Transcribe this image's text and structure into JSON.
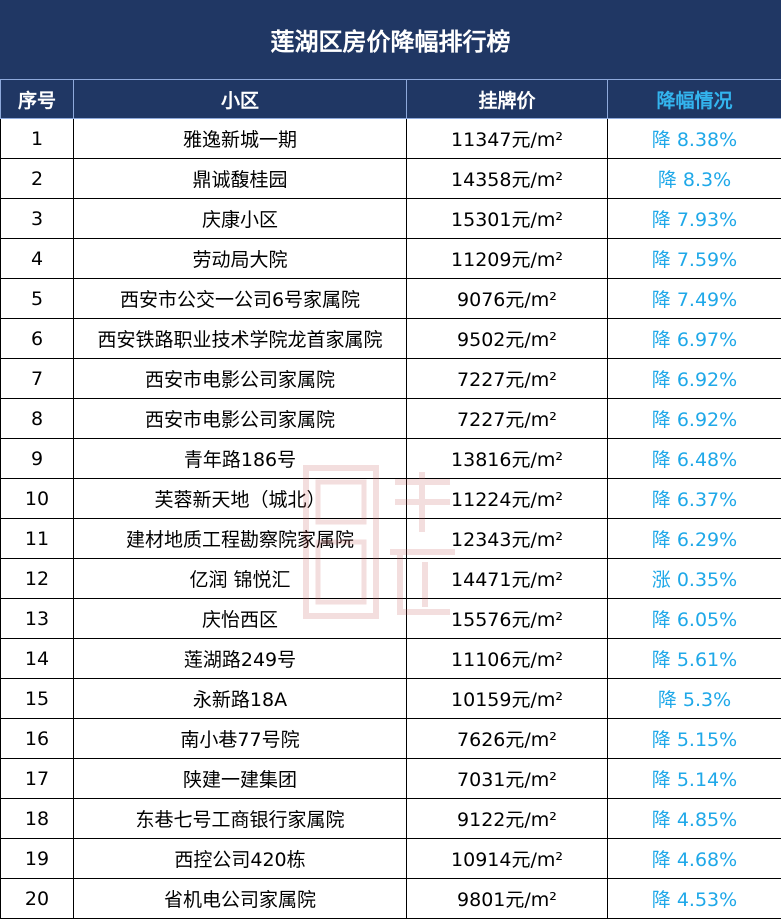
{
  "title": "莲湖区房价降幅排行榜",
  "headers": {
    "no": "序号",
    "name": "小区",
    "price": "挂牌价",
    "change": "降幅情况"
  },
  "colors": {
    "header_bg": "#203764",
    "accent": "#33b4ee",
    "change_text": "#1fa8e8"
  },
  "rows": [
    {
      "no": "1",
      "name": "雅逸新城一期",
      "price": "11347元/m²",
      "change": "降 8.38%"
    },
    {
      "no": "2",
      "name": "鼎诚馥桂园",
      "price": "14358元/m²",
      "change": "降 8.3%"
    },
    {
      "no": "3",
      "name": "庆康小区",
      "price": "15301元/m²",
      "change": "降 7.93%"
    },
    {
      "no": "4",
      "name": "劳动局大院",
      "price": "11209元/m²",
      "change": "降 7.59%"
    },
    {
      "no": "5",
      "name": "西安市公交一公司6号家属院",
      "price": "9076元/m²",
      "change": "降 7.49%"
    },
    {
      "no": "6",
      "name": "西安铁路职业技术学院龙首家属院",
      "price": "9502元/m²",
      "change": "降 6.97%"
    },
    {
      "no": "7",
      "name": "西安市电影公司家属院",
      "price": "7227元/m²",
      "change": "降 6.92%"
    },
    {
      "no": "8",
      "name": "西安市电影公司家属院",
      "price": "7227元/m²",
      "change": "降 6.92%"
    },
    {
      "no": "9",
      "name": "青年路186号",
      "price": "13816元/m²",
      "change": "降 6.48%"
    },
    {
      "no": "10",
      "name": "芙蓉新天地（城北）",
      "price": "11224元/m²",
      "change": "降 6.37%"
    },
    {
      "no": "11",
      "name": "建材地质工程勘察院家属院",
      "price": "12343元/m²",
      "change": "降 6.29%"
    },
    {
      "no": "12",
      "name": "亿润 锦悦汇",
      "price": "14471元/m²",
      "change": "涨 0.35%"
    },
    {
      "no": "13",
      "name": "庆怡西区",
      "price": "15576元/m²",
      "change": "降 6.05%"
    },
    {
      "no": "14",
      "name": "莲湖路249号",
      "price": "11106元/m²",
      "change": "降 5.61%"
    },
    {
      "no": "15",
      "name": "永新路18A",
      "price": "10159元/m²",
      "change": "降 5.3%"
    },
    {
      "no": "16",
      "name": "南小巷77号院",
      "price": "7626元/m²",
      "change": "降 5.15%"
    },
    {
      "no": "17",
      "name": "陕建一建集团",
      "price": "7031元/m²",
      "change": "降 5.14%"
    },
    {
      "no": "18",
      "name": "东巷七号工商银行家属院",
      "price": "9122元/m²",
      "change": "降 4.85%"
    },
    {
      "no": "19",
      "name": "西控公司420栋",
      "price": "10914元/m²",
      "change": "降 4.68%"
    },
    {
      "no": "20",
      "name": "省机电公司家属院",
      "price": "9801元/m²",
      "change": "降 4.53%"
    }
  ]
}
